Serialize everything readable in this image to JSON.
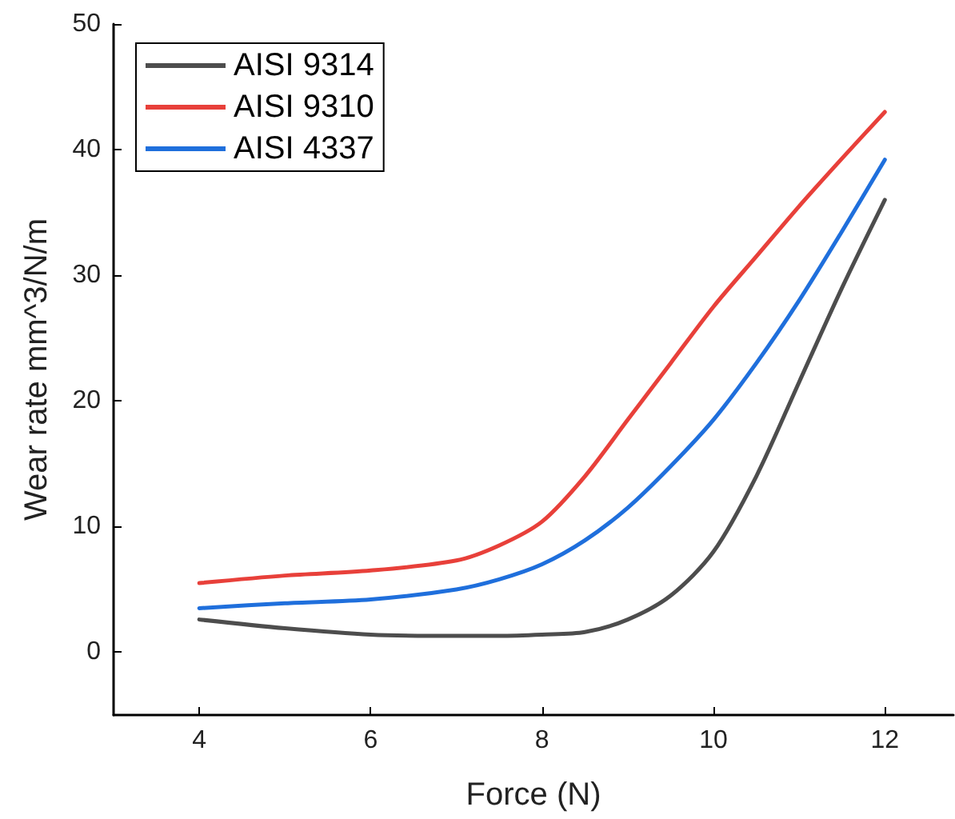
{
  "chart_data": {
    "type": "line",
    "xlabel": "Force (N)",
    "ylabel": "Wear rate mm^3/N/m",
    "x": [
      4,
      5,
      6,
      7,
      7.5,
      8,
      8.5,
      9,
      9.5,
      10,
      10.5,
      11,
      11.5,
      12
    ],
    "series": [
      {
        "name": "AISI 9314",
        "color": "#4d4d4d",
        "values": [
          2.6,
          1.9,
          1.4,
          1.3,
          1.3,
          1.4,
          1.6,
          2.6,
          4.5,
          8,
          14,
          21.5,
          29,
          36
        ]
      },
      {
        "name": "AISI 9310",
        "color": "#e8403a",
        "values": [
          5.5,
          6.1,
          6.5,
          7.3,
          8.5,
          10.4,
          14,
          18.5,
          23,
          27.5,
          31.5,
          35.5,
          39.3,
          43
        ]
      },
      {
        "name": "AISI 4337",
        "color": "#1f6fdc",
        "values": [
          3.5,
          3.9,
          4.2,
          5,
          5.8,
          7,
          8.9,
          11.5,
          14.8,
          18.5,
          23,
          28,
          33.5,
          39.2
        ]
      }
    ],
    "xlim": [
      3,
      12.8
    ],
    "xticks": [
      4,
      6,
      8,
      10,
      12
    ],
    "ylim": [
      -5,
      50
    ],
    "yticks": [
      0,
      10,
      20,
      30,
      40,
      50
    ],
    "legend": "top left",
    "grid": false,
    "marker": "none",
    "line_style": "solid"
  }
}
